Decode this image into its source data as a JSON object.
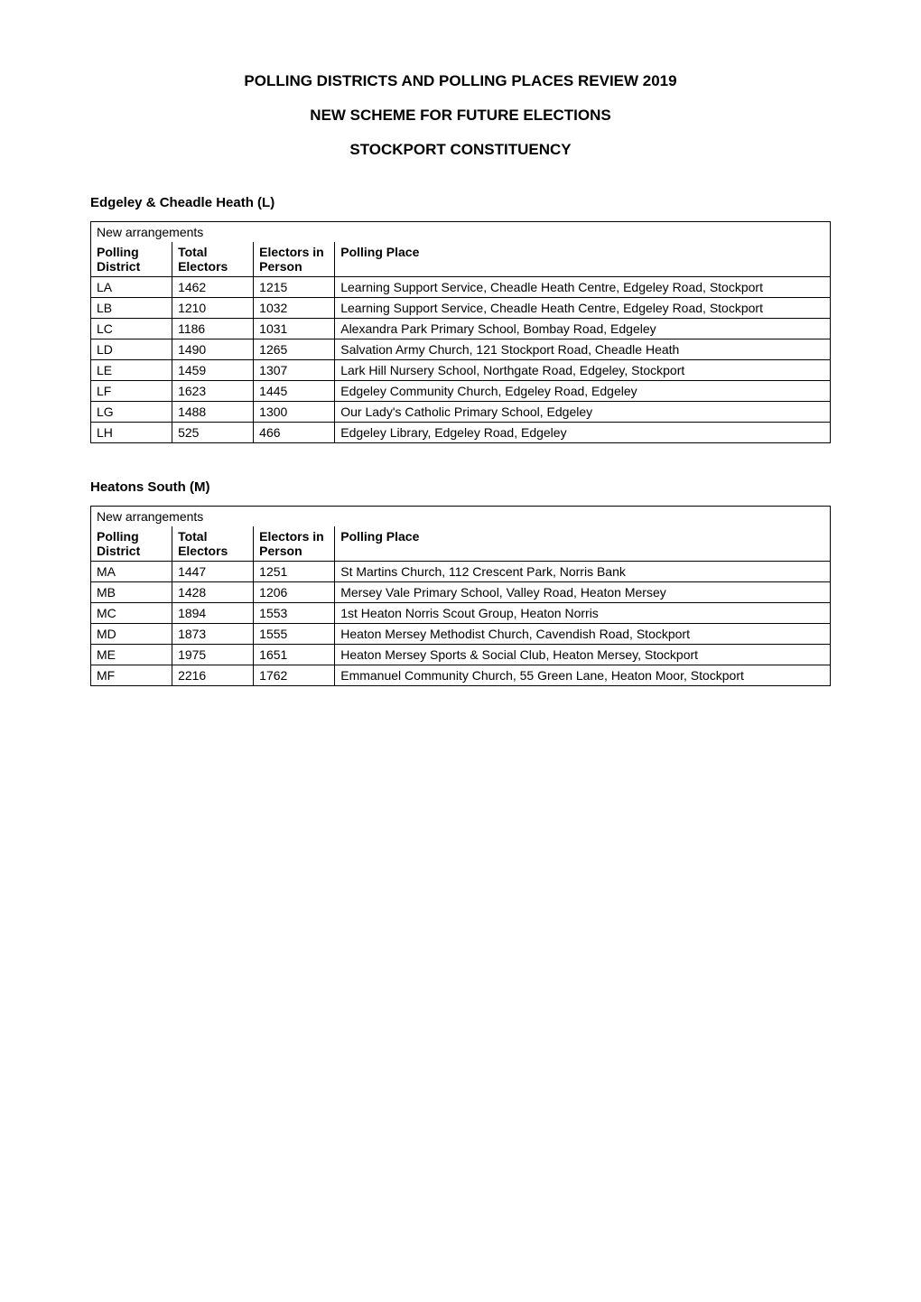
{
  "title_line1": "POLLING DISTRICTS AND POLLING PLACES REVIEW 2019",
  "title_line2": "NEW SCHEME FOR FUTURE ELECTIONS",
  "title_line3": "STOCKPORT CONSTITUENCY",
  "table_caption": "New arrangements",
  "columns": {
    "polling_district": "Polling District",
    "total_electors": "Total Electors",
    "electors_in_person": "Electors in Person",
    "polling_place": "Polling Place"
  },
  "wards": [
    {
      "name": "Edgeley & Cheadle Heath (L)",
      "rows": [
        {
          "district": "LA",
          "total": "1462",
          "in_person": "1215",
          "place": "Learning Support Service, Cheadle Heath Centre, Edgeley Road, Stockport"
        },
        {
          "district": "LB",
          "total": "1210",
          "in_person": "1032",
          "place": "Learning Support Service, Cheadle Heath Centre, Edgeley Road, Stockport"
        },
        {
          "district": "LC",
          "total": "1186",
          "in_person": "1031",
          "place": "Alexandra Park Primary School, Bombay Road, Edgeley"
        },
        {
          "district": "LD",
          "total": "1490",
          "in_person": "1265",
          "place": "Salvation Army Church, 121 Stockport Road, Cheadle Heath"
        },
        {
          "district": "LE",
          "total": "1459",
          "in_person": "1307",
          "place": "Lark Hill Nursery School, Northgate Road, Edgeley, Stockport"
        },
        {
          "district": "LF",
          "total": "1623",
          "in_person": "1445",
          "place": "Edgeley Community Church, Edgeley Road, Edgeley"
        },
        {
          "district": "LG",
          "total": "1488",
          "in_person": "1300",
          "place": "Our Lady's Catholic Primary School, Edgeley"
        },
        {
          "district": "LH",
          "total": "525",
          "in_person": "466",
          "place": "Edgeley Library, Edgeley Road, Edgeley"
        }
      ]
    },
    {
      "name": "Heatons South (M)",
      "rows": [
        {
          "district": "MA",
          "total": "1447",
          "in_person": "1251",
          "place": "St Martins Church, 112 Crescent Park, Norris Bank"
        },
        {
          "district": "MB",
          "total": "1428",
          "in_person": "1206",
          "place": "Mersey Vale Primary School, Valley Road, Heaton Mersey"
        },
        {
          "district": "MC",
          "total": "1894",
          "in_person": "1553",
          "place": "1st Heaton Norris Scout Group, Heaton Norris"
        },
        {
          "district": "MD",
          "total": "1873",
          "in_person": "1555",
          "place": "Heaton Mersey Methodist Church, Cavendish Road, Stockport"
        },
        {
          "district": "ME",
          "total": "1975",
          "in_person": "1651",
          "place": "Heaton Mersey Sports & Social Club, Heaton Mersey, Stockport"
        },
        {
          "district": "MF",
          "total": "2216",
          "in_person": "1762",
          "place": "Emmanuel Community Church, 55 Green Lane, Heaton Moor, Stockport"
        }
      ]
    }
  ],
  "styles": {
    "background_color": "#ffffff",
    "text_color": "#000000",
    "border_color": "#000000",
    "title_fontsize": 17,
    "body_fontsize": 14,
    "ward_title_fontsize": 15,
    "font_family": "Arial"
  }
}
